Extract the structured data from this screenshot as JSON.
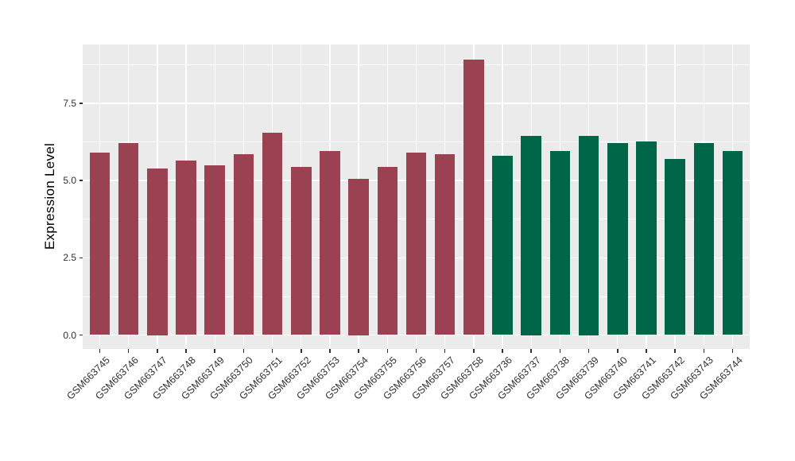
{
  "figure": {
    "background": "#FFFFFF",
    "panel_background": "#EBEBEB",
    "grid_color": "#FFFFFF",
    "axis_text_color": "#303030",
    "axis_title_color": "#000000",
    "tick_mark_color": "#333333"
  },
  "chart_data": {
    "type": "bar",
    "title": "",
    "xlabel": "",
    "ylabel": "Expression Level",
    "legend": "none",
    "grid": "white major+minor horizontal gridlines and major vertical gridline per category on grey panel",
    "categories": [
      "GSM663745",
      "GSM663746",
      "GSM663747",
      "GSM663748",
      "GSM663749",
      "GSM663750",
      "GSM663751",
      "GSM663752",
      "GSM663753",
      "GSM663754",
      "GSM663755",
      "GSM663756",
      "GSM663757",
      "GSM663758",
      "GSM663736",
      "GSM663737",
      "GSM663738",
      "GSM663739",
      "GSM663740",
      "GSM663741",
      "GSM663742",
      "GSM663743",
      "GSM663744"
    ],
    "values": [
      5.9,
      6.2,
      5.4,
      5.65,
      5.5,
      5.85,
      6.55,
      5.45,
      5.95,
      5.05,
      5.45,
      5.9,
      5.85,
      8.9,
      5.8,
      6.45,
      5.95,
      6.45,
      6.2,
      6.25,
      5.7,
      6.2,
      5.95
    ],
    "groups": [
      {
        "color": "#9A4251",
        "count": 14,
        "from": "GSM663745",
        "to": "GSM663758"
      },
      {
        "color": "#006648",
        "count": 9,
        "from": "GSM663736",
        "to": "GSM663744"
      }
    ],
    "y_axis": {
      "tick_values": [
        0,
        2.5,
        5,
        7.5
      ],
      "tick_labels": [
        "0.0",
        "2.5",
        "5.0",
        "7.5"
      ],
      "minor_tick_values": [
        1.25,
        3.75,
        6.25,
        8.75
      ],
      "ylim": [
        -0.45,
        9.4
      ]
    },
    "x_tick_label_rotation_deg": 45
  }
}
